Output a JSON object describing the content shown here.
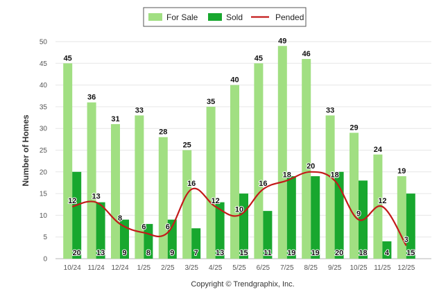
{
  "chart_data": {
    "type": "bar",
    "title": "",
    "xlabel": "",
    "ylabel": "Number of Homes",
    "ylim": [
      0,
      50
    ],
    "yticks": [
      0,
      5,
      10,
      15,
      20,
      25,
      30,
      35,
      40,
      45,
      50
    ],
    "grid": true,
    "legend_position": "top-center",
    "categories": [
      "10/24",
      "11/24",
      "12/24",
      "1/25",
      "2/25",
      "3/25",
      "4/25",
      "5/25",
      "6/25",
      "7/25",
      "8/25",
      "9/25",
      "10/25",
      "11/25",
      "12/25"
    ],
    "series": [
      {
        "name": "For Sale",
        "type": "bar",
        "color": "#a1df82",
        "values": [
          45,
          36,
          31,
          33,
          28,
          25,
          35,
          40,
          45,
          49,
          46,
          33,
          29,
          24,
          19
        ]
      },
      {
        "name": "Sold",
        "type": "bar",
        "color": "#18a72e",
        "values": [
          20,
          13,
          9,
          8,
          9,
          7,
          13,
          15,
          11,
          19,
          19,
          20,
          18,
          4,
          15
        ]
      },
      {
        "name": "Pended",
        "type": "line",
        "color": "#c31a1a",
        "values": [
          12,
          13,
          8,
          6,
          6,
          16,
          12,
          10,
          16,
          18,
          20,
          18,
          9,
          12,
          3
        ]
      }
    ]
  },
  "footer": {
    "copyright": "Copyright © Trendgraphix, Inc."
  }
}
